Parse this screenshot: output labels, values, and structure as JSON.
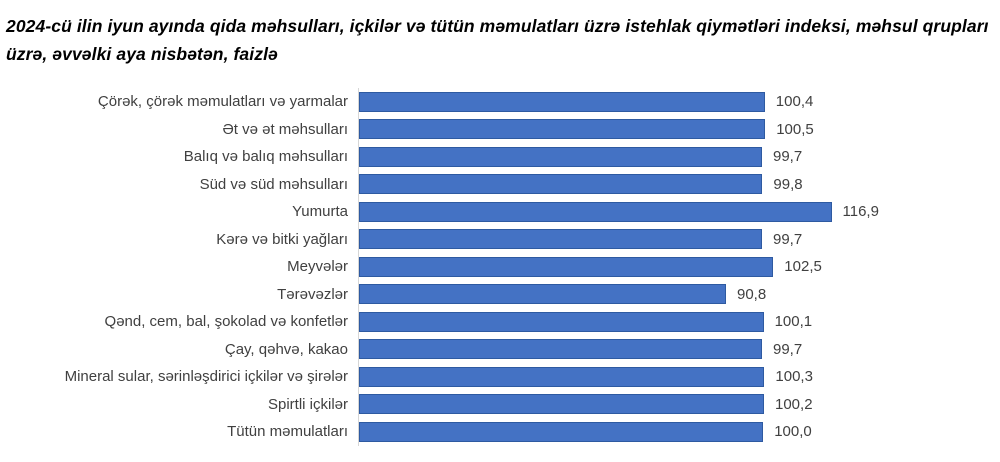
{
  "chart_data": {
    "type": "bar",
    "orientation": "horizontal",
    "title": "2024-cü ilin iyun ayında qida məhsulları, içkilər və tütün məmulatları üzrə istehlak qiymətləri indeksi, məhsul qrupları üzrə, əvvəlki aya nisbətən, faizlə",
    "categories": [
      "Çörək, çörək məmulatları və yarmalar",
      "Ət və ət məhsulları",
      "Balıq və balıq məhsulları",
      "Süd və süd məhsulları",
      "Yumurta",
      "Kərə və bitki yağları",
      "Meyvələr",
      "Tərəvəzlər",
      "Qənd, cem, bal, şokolad və konfetlər",
      "Çay, qəhvə, kakao",
      "Mineral sular, sərinləşdirici içkilər və şirələr",
      "Spirtli içkilər",
      "Tütün məmulatları"
    ],
    "values": [
      100.4,
      100.5,
      99.7,
      99.8,
      116.9,
      99.7,
      102.5,
      90.8,
      100.1,
      99.7,
      100.3,
      100.2,
      100.0
    ],
    "value_labels": [
      "100,4",
      "100,5",
      "99,7",
      "99,8",
      "116,9",
      "99,7",
      "102,5",
      "90,8",
      "100,1",
      "99,7",
      "100,3",
      "100,2",
      "100,0"
    ],
    "xlabel": "",
    "ylabel": "",
    "xlim": [
      0,
      120
    ],
    "grid": false,
    "legend": false,
    "bar_color": "#4472c4",
    "bar_border_color": "#2e5aa1",
    "axis_line_color": "#d6d6d6",
    "label_color": "#404040",
    "title_color": "#000000"
  }
}
